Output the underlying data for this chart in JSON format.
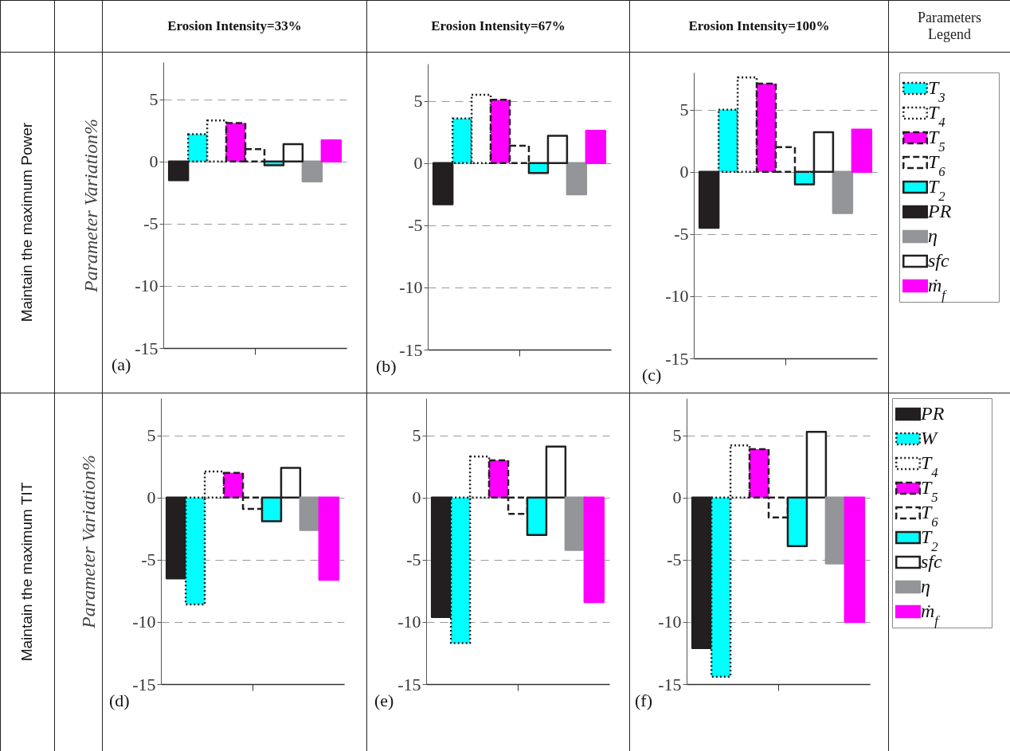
{
  "chart_data": [
    {
      "type": "bar",
      "title": "Erosion Intensity=33%",
      "ylabel": "Parameter Variation%",
      "annotations": [
        "Maintain the maximum Power",
        "(a)"
      ],
      "categories": [
        null,
        null,
        null,
        null,
        null,
        null,
        null,
        null,
        null
      ],
      "ylim": [
        -15,
        8
      ],
      "yticks": [
        -15,
        -10,
        -5,
        0,
        5
      ],
      "grid": "y",
      "tick_labels": "y",
      "series": [
        {
          "color": "#00ffff",
          "line_style": "dotted",
          "values": [
            null,
            2.2,
            null,
            null,
            null,
            null,
            null,
            null,
            null
          ]
        },
        {
          "color": "#ffffff",
          "line_style": "dotted",
          "values": [
            null,
            null,
            3.3,
            null,
            null,
            null,
            null,
            null,
            null
          ]
        },
        {
          "color": "#ff00ff",
          "line_style": "dashed",
          "values": [
            null,
            null,
            null,
            3.1,
            null,
            null,
            null,
            null,
            null
          ]
        },
        {
          "color": "#ffffff",
          "line_style": "dashed",
          "values": [
            null,
            null,
            null,
            null,
            1.0,
            null,
            null,
            null,
            null
          ]
        },
        {
          "color": "#00ffff",
          "line_style": "solid",
          "values": [
            null,
            null,
            null,
            null,
            null,
            -0.3,
            null,
            null,
            null
          ]
        },
        {
          "color": "#231f20",
          "values": [
            -1.5,
            null,
            null,
            null,
            null,
            null,
            null,
            null,
            null
          ]
        },
        {
          "color": "#939598",
          "values": [
            null,
            null,
            null,
            null,
            null,
            null,
            null,
            -1.6,
            null
          ]
        },
        {
          "color": "#ffffff",
          "line_style": "solid",
          "values": [
            null,
            null,
            null,
            null,
            null,
            null,
            1.4,
            null,
            null
          ]
        },
        {
          "color": "#ff00ff",
          "values": [
            null,
            null,
            null,
            null,
            null,
            null,
            null,
            null,
            1.7
          ]
        }
      ]
    },
    {
      "type": "bar",
      "title": "Erosion Intensity=67%",
      "annotations": [
        "(b)"
      ],
      "categories": [
        null,
        null,
        null,
        null,
        null,
        null,
        null,
        null,
        null
      ],
      "ylim": [
        -15,
        8
      ],
      "yticks": [
        -15,
        -10,
        -5,
        0,
        5
      ],
      "grid": "y",
      "tick_labels": "y",
      "series": [
        {
          "color": "#00ffff",
          "line_style": "dotted",
          "values": [
            null,
            3.6,
            null,
            null,
            null,
            null,
            null,
            null,
            null
          ]
        },
        {
          "color": "#ffffff",
          "line_style": "dotted",
          "values": [
            null,
            null,
            5.5,
            null,
            null,
            null,
            null,
            null,
            null
          ]
        },
        {
          "color": "#ff00ff",
          "line_style": "dashed",
          "values": [
            null,
            null,
            null,
            5.1,
            null,
            null,
            null,
            null,
            null
          ]
        },
        {
          "color": "#ffffff",
          "line_style": "dashed",
          "values": [
            null,
            null,
            null,
            null,
            1.4,
            null,
            null,
            null,
            null
          ]
        },
        {
          "color": "#00ffff",
          "line_style": "solid",
          "values": [
            null,
            null,
            null,
            null,
            null,
            -0.8,
            null,
            null,
            null
          ]
        },
        {
          "color": "#231f20",
          "values": [
            -3.3,
            null,
            null,
            null,
            null,
            null,
            null,
            null,
            null
          ]
        },
        {
          "color": "#939598",
          "values": [
            null,
            null,
            null,
            null,
            null,
            null,
            null,
            -2.5,
            null
          ]
        },
        {
          "color": "#ffffff",
          "line_style": "solid",
          "values": [
            null,
            null,
            null,
            null,
            null,
            null,
            2.2,
            null,
            null
          ]
        },
        {
          "color": "#ff00ff",
          "values": [
            null,
            null,
            null,
            null,
            null,
            null,
            null,
            null,
            2.6
          ]
        }
      ]
    },
    {
      "type": "bar",
      "title": "Erosion Intensity=100%",
      "legend_title": "Parameters Legend",
      "legend": "right",
      "annotations": [
        "(c)"
      ],
      "categories": [
        null,
        null,
        null,
        null,
        null,
        null,
        null,
        null,
        null
      ],
      "ylim": [
        -15,
        8
      ],
      "yticks": [
        -15,
        -10,
        -5,
        0,
        5
      ],
      "grid": "y",
      "tick_labels": "y",
      "series": [
        {
          "name": "T$_{3}$",
          "color": "#00ffff",
          "line_style": "dotted",
          "values": [
            null,
            5.0,
            null,
            null,
            null,
            null,
            null,
            null,
            null
          ]
        },
        {
          "name": "T$_{4}$",
          "color": "#ffffff",
          "line_style": "dotted",
          "values": [
            null,
            null,
            7.6,
            null,
            null,
            null,
            null,
            null,
            null
          ]
        },
        {
          "name": "T$_{5}$",
          "color": "#ff00ff",
          "line_style": "dashed",
          "values": [
            null,
            null,
            null,
            7.1,
            null,
            null,
            null,
            null,
            null
          ]
        },
        {
          "name": "T$_{6}$",
          "color": "#ffffff",
          "line_style": "dashed",
          "values": [
            null,
            null,
            null,
            null,
            2.0,
            null,
            null,
            null,
            null
          ]
        },
        {
          "name": "T$_{2}$",
          "color": "#00ffff",
          "line_style": "solid",
          "values": [
            null,
            null,
            null,
            null,
            null,
            -1.0,
            null,
            null,
            null
          ]
        },
        {
          "name": "PR",
          "color": "#231f20",
          "values": [
            -4.5,
            null,
            null,
            null,
            null,
            null,
            null,
            null,
            null
          ]
        },
        {
          "name": "η",
          "color": "#939598",
          "values": [
            null,
            null,
            null,
            null,
            null,
            null,
            null,
            -3.3,
            null
          ]
        },
        {
          "name": "sfc",
          "color": "#ffffff",
          "line_style": "solid",
          "values": [
            null,
            null,
            null,
            null,
            null,
            null,
            3.2,
            null,
            null
          ]
        },
        {
          "name": "ṁ$_{f}$",
          "color": "#ff00ff",
          "values": [
            null,
            null,
            null,
            null,
            null,
            null,
            null,
            null,
            3.4
          ]
        }
      ]
    },
    {
      "type": "bar",
      "ylabel": "Parameter Variation%",
      "annotations": [
        "Maintain the maximum TIT",
        "(d)"
      ],
      "categories": [
        null,
        null,
        null,
        null,
        null,
        null,
        null,
        null,
        null
      ],
      "ylim": [
        -15,
        8
      ],
      "yticks": [
        -15,
        -10,
        -5,
        0,
        5
      ],
      "grid": "y",
      "tick_labels": "y",
      "series": [
        {
          "color": "#231f20",
          "values": [
            -6.5,
            null,
            null,
            null,
            null,
            null,
            null,
            null,
            null
          ]
        },
        {
          "color": "#00ffff",
          "line_style": "dotted",
          "values": [
            null,
            -8.6,
            null,
            null,
            null,
            null,
            null,
            null,
            null
          ]
        },
        {
          "color": "#ffffff",
          "line_style": "dotted",
          "values": [
            null,
            null,
            2.1,
            null,
            null,
            null,
            null,
            null,
            null
          ]
        },
        {
          "color": "#ff00ff",
          "line_style": "dashed",
          "values": [
            null,
            null,
            null,
            2.0,
            null,
            null,
            null,
            null,
            null
          ]
        },
        {
          "color": "#ffffff",
          "line_style": "dashed",
          "values": [
            null,
            null,
            null,
            null,
            -0.9,
            null,
            null,
            null,
            null
          ]
        },
        {
          "color": "#00ffff",
          "line_style": "solid",
          "values": [
            null,
            null,
            null,
            null,
            null,
            -1.9,
            null,
            null,
            null
          ]
        },
        {
          "color": "#ffffff",
          "line_style": "solid",
          "values": [
            null,
            null,
            null,
            null,
            null,
            null,
            2.4,
            null,
            null
          ]
        },
        {
          "color": "#939598",
          "values": [
            null,
            null,
            null,
            null,
            null,
            null,
            null,
            -2.6,
            null
          ]
        },
        {
          "color": "#ff00ff",
          "values": [
            null,
            null,
            null,
            null,
            null,
            null,
            null,
            null,
            -6.6
          ]
        }
      ]
    },
    {
      "type": "bar",
      "annotations": [
        "(e)"
      ],
      "categories": [
        null,
        null,
        null,
        null,
        null,
        null,
        null,
        null,
        null
      ],
      "ylim": [
        -15,
        8
      ],
      "yticks": [
        -15,
        -10,
        -5,
        0,
        5
      ],
      "grid": "y",
      "tick_labels": "y",
      "series": [
        {
          "color": "#231f20",
          "values": [
            -9.6,
            null,
            null,
            null,
            null,
            null,
            null,
            null,
            null
          ]
        },
        {
          "color": "#00ffff",
          "line_style": "dotted",
          "values": [
            null,
            -11.7,
            null,
            null,
            null,
            null,
            null,
            null,
            null
          ]
        },
        {
          "color": "#ffffff",
          "line_style": "dotted",
          "values": [
            null,
            null,
            3.3,
            null,
            null,
            null,
            null,
            null,
            null
          ]
        },
        {
          "color": "#ff00ff",
          "line_style": "dashed",
          "values": [
            null,
            null,
            null,
            3.0,
            null,
            null,
            null,
            null,
            null
          ]
        },
        {
          "color": "#ffffff",
          "line_style": "dashed",
          "values": [
            null,
            null,
            null,
            null,
            -1.3,
            null,
            null,
            null,
            null
          ]
        },
        {
          "color": "#00ffff",
          "line_style": "solid",
          "values": [
            null,
            null,
            null,
            null,
            null,
            -3.0,
            null,
            null,
            null
          ]
        },
        {
          "color": "#ffffff",
          "line_style": "solid",
          "values": [
            null,
            null,
            null,
            null,
            null,
            null,
            4.1,
            null,
            null
          ]
        },
        {
          "color": "#939598",
          "values": [
            null,
            null,
            null,
            null,
            null,
            null,
            null,
            -4.2,
            null
          ]
        },
        {
          "color": "#ff00ff",
          "values": [
            null,
            null,
            null,
            null,
            null,
            null,
            null,
            null,
            -8.4
          ]
        }
      ]
    },
    {
      "type": "bar",
      "legend": "right",
      "annotations": [
        "(f)"
      ],
      "categories": [
        null,
        null,
        null,
        null,
        null,
        null,
        null,
        null,
        null
      ],
      "ylim": [
        -15,
        8
      ],
      "yticks": [
        -15,
        -10,
        -5,
        0,
        5
      ],
      "grid": "y",
      "tick_labels": "y",
      "series": [
        {
          "name": "PR",
          "color": "#231f20",
          "values": [
            -12.1,
            null,
            null,
            null,
            null,
            null,
            null,
            null,
            null
          ]
        },
        {
          "name": "W",
          "color": "#00ffff",
          "line_style": "dotted",
          "values": [
            null,
            -14.4,
            null,
            null,
            null,
            null,
            null,
            null,
            null
          ]
        },
        {
          "name": "T$_{4}$",
          "color": "#ffffff",
          "line_style": "dotted",
          "values": [
            null,
            null,
            4.2,
            null,
            null,
            null,
            null,
            null,
            null
          ]
        },
        {
          "name": "T$_{5}$",
          "color": "#ff00ff",
          "line_style": "dashed",
          "values": [
            null,
            null,
            null,
            3.9,
            null,
            null,
            null,
            null,
            null
          ]
        },
        {
          "name": "T$_{6}$",
          "color": "#ffffff",
          "line_style": "dashed",
          "values": [
            null,
            null,
            null,
            null,
            -1.6,
            null,
            null,
            null,
            null
          ]
        },
        {
          "name": "T$_{2}$",
          "color": "#00ffff",
          "line_style": "solid",
          "values": [
            null,
            null,
            null,
            null,
            null,
            -3.9,
            null,
            null,
            null
          ]
        },
        {
          "name": "sfc",
          "color": "#ffffff",
          "line_style": "solid",
          "values": [
            null,
            null,
            null,
            null,
            null,
            null,
            5.3,
            null,
            null
          ]
        },
        {
          "name": "η",
          "color": "#939598",
          "values": [
            null,
            null,
            null,
            null,
            null,
            null,
            null,
            -5.3,
            null
          ]
        },
        {
          "name": "ṁ$_{f}$",
          "color": "#ff00ff",
          "values": [
            null,
            null,
            null,
            null,
            null,
            null,
            null,
            null,
            -10.0
          ]
        }
      ]
    }
  ]
}
